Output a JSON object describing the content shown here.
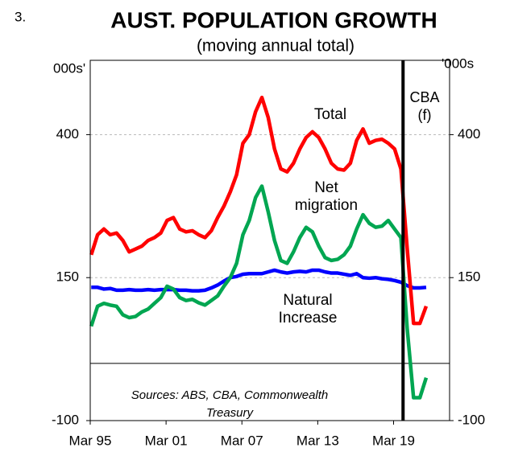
{
  "chart_data": {
    "type": "line",
    "number": "3.",
    "title": "AUST. POPULATION GROWTH",
    "subtitle": "(moving annual total)",
    "y_label": "000s'",
    "y2_label": "'000s",
    "forecast_label": [
      "CBA",
      "(f)"
    ],
    "source": [
      "Sources: ABS, CBA, Commonwealth",
      "Treasury"
    ],
    "forecast_divider": 2019.92,
    "x": [
      1995.25,
      1995.75,
      1996.25,
      1996.75,
      1997.25,
      1997.75,
      1998.25,
      1998.75,
      1999.25,
      1999.75,
      2000.25,
      2000.75,
      2001.25,
      2001.75,
      2002.25,
      2002.75,
      2003.25,
      2003.75,
      2004.25,
      2004.75,
      2005.25,
      2005.75,
      2006.25,
      2006.75,
      2007.25,
      2007.75,
      2008.25,
      2008.75,
      2009.25,
      2009.75,
      2010.25,
      2010.75,
      2011.25,
      2011.75,
      2012.25,
      2012.75,
      2013.25,
      2013.75,
      2014.25,
      2014.75,
      2015.25,
      2015.75,
      2016.25,
      2016.75,
      2017.25,
      2017.75,
      2018.25,
      2018.75,
      2019.25,
      2019.75,
      2020.25,
      2020.75,
      2021.25,
      2021.75
    ],
    "series": [
      {
        "name": [
          "Total"
        ],
        "color": "#ff0000",
        "values": [
          190,
          225,
          235,
          225,
          228,
          215,
          195,
          200,
          205,
          215,
          220,
          228,
          250,
          255,
          235,
          230,
          232,
          225,
          220,
          232,
          255,
          275,
          300,
          330,
          385,
          400,
          440,
          465,
          430,
          375,
          340,
          335,
          350,
          375,
          395,
          405,
          395,
          375,
          350,
          340,
          338,
          350,
          390,
          410,
          385,
          390,
          392,
          385,
          375,
          340,
          200,
          70,
          70,
          100
        ]
      },
      {
        "name": [
          "Net",
          "migration"
        ],
        "color": "#00a651",
        "values": [
          65,
          100,
          105,
          102,
          100,
          85,
          80,
          82,
          90,
          95,
          105,
          115,
          135,
          130,
          115,
          110,
          112,
          106,
          102,
          110,
          118,
          135,
          150,
          175,
          225,
          250,
          290,
          310,
          265,
          215,
          180,
          175,
          195,
          220,
          238,
          230,
          205,
          185,
          180,
          182,
          190,
          205,
          235,
          260,
          245,
          238,
          240,
          250,
          235,
          220,
          60,
          -60,
          -60,
          -25
        ]
      },
      {
        "name": [
          "Natural",
          "Increase"
        ],
        "color": "#0000ff",
        "values": [
          133,
          133,
          130,
          131,
          128,
          128,
          129,
          128,
          128,
          129,
          128,
          129,
          129,
          129,
          128,
          128,
          127,
          127,
          128,
          132,
          137,
          144,
          150,
          152,
          156,
          157,
          157,
          157,
          160,
          163,
          160,
          158,
          160,
          161,
          160,
          163,
          163,
          160,
          158,
          158,
          156,
          154,
          157,
          150,
          149,
          150,
          148,
          147,
          145,
          142,
          136,
          132,
          132,
          133
        ]
      }
    ],
    "xlim": [
      1995.17,
      2023.6
    ],
    "xticks": [
      {
        "value": 1995.17,
        "label": "Mar 95"
      },
      {
        "value": 2001.17,
        "label": "Mar 01"
      },
      {
        "value": 2007.17,
        "label": "Mar 07"
      },
      {
        "value": 2013.17,
        "label": "Mar 13"
      },
      {
        "value": 2019.17,
        "label": "Mar 19"
      }
    ],
    "ylim": [
      -100,
      530
    ],
    "yticks": [
      -100,
      150,
      400
    ],
    "grid": true
  }
}
